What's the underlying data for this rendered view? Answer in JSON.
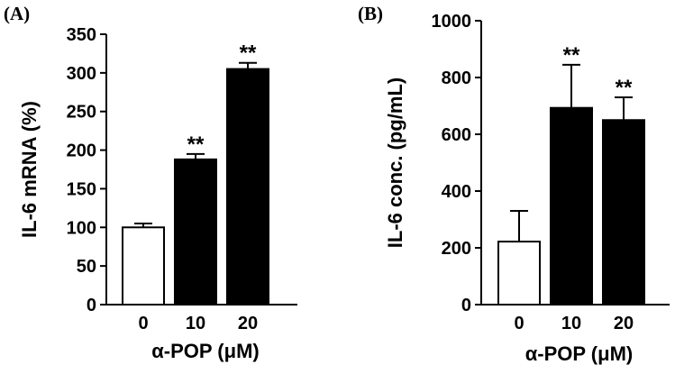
{
  "chart_data": [
    {
      "type": "bar",
      "panel": "(A)",
      "categories": [
        "0",
        "10",
        "20"
      ],
      "values": [
        100,
        188,
        305
      ],
      "errors": [
        5,
        7,
        8
      ],
      "significance": [
        "",
        "**",
        "**"
      ],
      "bar_colors": [
        "#ffffff",
        "#000000",
        "#000000"
      ],
      "xlabel": "α-POP (μM)",
      "ylabel": "IL-6 mRNA (%)",
      "ylim": [
        0,
        350
      ],
      "yticks": [
        0,
        50,
        100,
        150,
        200,
        250,
        300,
        350
      ],
      "grid": false
    },
    {
      "type": "bar",
      "panel": "(B)",
      "categories": [
        "0",
        "10",
        "20"
      ],
      "values": [
        222,
        693,
        650
      ],
      "errors": [
        108,
        152,
        80
      ],
      "significance": [
        "",
        "**",
        "**"
      ],
      "bar_colors": [
        "#ffffff",
        "#000000",
        "#000000"
      ],
      "xlabel": "α-POP (μM)",
      "ylabel": "IL-6 conc. (pg/mL)",
      "ylim": [
        0,
        1000
      ],
      "yticks": [
        0,
        200,
        400,
        600,
        800,
        1000
      ],
      "grid": false
    }
  ]
}
